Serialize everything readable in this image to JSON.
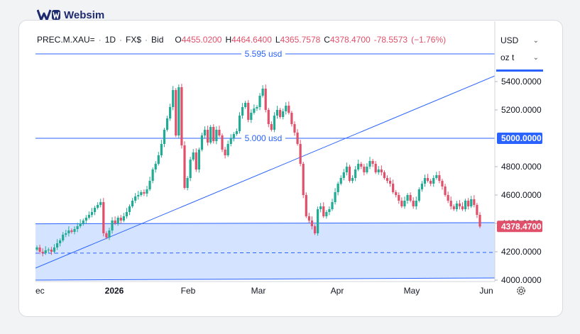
{
  "brand": {
    "name": "Websim"
  },
  "legend": {
    "symbol": "PREC.M.XAU=",
    "interval": "1D",
    "source": "FX$",
    "price_type": "Bid",
    "open_label": "O",
    "open": "4455.0200",
    "high_label": "H",
    "high": "4464.6400",
    "low_label": "L",
    "low": "4365.7578",
    "close_label": "C",
    "close": "4378.4700",
    "change": "-78.5573",
    "change_pct": "(−1.76%)"
  },
  "selectors": {
    "currency": "USD",
    "unit": "oz t"
  },
  "icons": {
    "dropdown": "chevron-down-icon",
    "settings": "gear-icon"
  },
  "colors": {
    "up": "#22ab94",
    "down": "#e0506a",
    "line": "#2962ff",
    "zone": "#cfe0ff"
  },
  "chart_data": {
    "type": "candlestick",
    "y_ticks": [
      "4000.0000",
      "4200.0000",
      "4400.0000",
      "4600.0000",
      "4800.0000",
      "5000.0000",
      "5200.0000",
      "5400.0000"
    ],
    "x_ticks": [
      "ec",
      "2026",
      "Feb",
      "Mar",
      "Apr",
      "May",
      "Jun"
    ],
    "ylim": [
      3990,
      5625
    ],
    "last_price": "4378.4700",
    "annotations": {
      "top_level": {
        "value": 5595,
        "label": "5.595 usd"
      },
      "mid_level": {
        "value": 5000,
        "label": "5.000 usd",
        "axis_label": "5000.0000"
      },
      "zone_top": [
        4397,
        4405
      ],
      "zone_bottom": [
        4000,
        4015
      ],
      "dashed_level": [
        4190,
        4195
      ],
      "trendline": [
        4085,
        5440
      ]
    },
    "closes": [
      4230,
      4200,
      4190,
      4210,
      4215,
      4200,
      4230,
      4260,
      4280,
      4320,
      4330,
      4350,
      4340,
      4360,
      4380,
      4400,
      4420,
      4440,
      4460,
      4480,
      4510,
      4530,
      4550,
      4330,
      4300,
      4350,
      4420,
      4400,
      4440,
      4420,
      4450,
      4480,
      4520,
      4560,
      4590,
      4600,
      4620,
      4610,
      4640,
      4700,
      4780,
      4820,
      4880,
      4960,
      5060,
      5140,
      5220,
      5340,
      5020,
      5360,
      4950,
      4650,
      4720,
      4850,
      4900,
      4780,
      4920,
      5020,
      5060,
      4970,
      5080,
      4980,
      5060,
      5020,
      4920,
      4880,
      4960,
      5000,
      5030,
      5050,
      5160,
      5220,
      5250,
      5130,
      5180,
      5210,
      5220,
      5300,
      5350,
      5200,
      5100,
      5060,
      5160,
      5200,
      5150,
      5190,
      5230,
      5180,
      5100,
      5040,
      4960,
      4820,
      4600,
      4450,
      4420,
      4380,
      4330,
      4500,
      4520,
      4450,
      4480,
      4500,
      4550,
      4620,
      4680,
      4720,
      4760,
      4800,
      4700,
      4720,
      4780,
      4820,
      4800,
      4760,
      4800,
      4840,
      4820,
      4760,
      4780,
      4760,
      4720,
      4700,
      4680,
      4620,
      4600,
      4560,
      4520,
      4560,
      4600,
      4560,
      4520,
      4560,
      4640,
      4680,
      4720,
      4700,
      4680,
      4720,
      4740,
      4700,
      4660,
      4600,
      4560,
      4520,
      4500,
      4540,
      4520,
      4500,
      4560,
      4520,
      4570,
      4530,
      4460,
      4378
    ]
  }
}
